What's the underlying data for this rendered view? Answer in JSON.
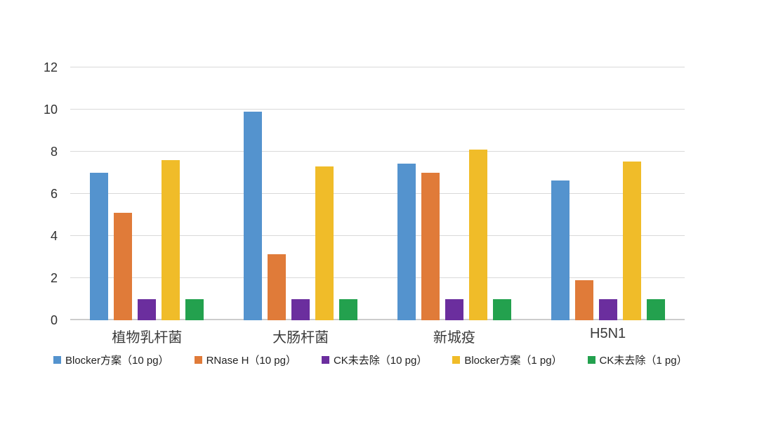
{
  "chart_data": {
    "type": "bar",
    "title": "",
    "xlabel": "",
    "ylabel": "",
    "categories": [
      "植物乳杆菌",
      "大肠杆菌",
      "新城疫",
      "H5N1"
    ],
    "series": [
      {
        "name": "Blocker方案（10 pg）",
        "color": "#5493CE",
        "values": [
          7.0,
          9.9,
          7.45,
          6.65
        ]
      },
      {
        "name": "RNase H（10 pg）",
        "color": "#E07B39",
        "values": [
          5.1,
          3.15,
          7.0,
          1.9
        ]
      },
      {
        "name": "CK未去除（10 pg）",
        "color": "#6B2E9E",
        "values": [
          1.0,
          1.0,
          1.0,
          1.0
        ]
      },
      {
        "name": "Blocker方案（1 pg）",
        "color": "#F0BC29",
        "values": [
          7.6,
          7.3,
          8.1,
          7.55
        ]
      },
      {
        "name": "CK未去除（1 pg）",
        "color": "#23A14E",
        "values": [
          1.0,
          1.0,
          1.0,
          1.0
        ]
      }
    ],
    "ylim": [
      0,
      12
    ],
    "yticks": [
      0,
      2,
      4,
      6,
      8,
      10,
      12
    ],
    "grid": true,
    "legend_position": "bottom"
  },
  "colors": {
    "background": "#FFFFFF",
    "gridline": "#D9D9D9",
    "baseline": "#CCCCCC",
    "axis_text": "#303030",
    "category_text": "#3A3A3A",
    "legend_text": "#222222"
  }
}
